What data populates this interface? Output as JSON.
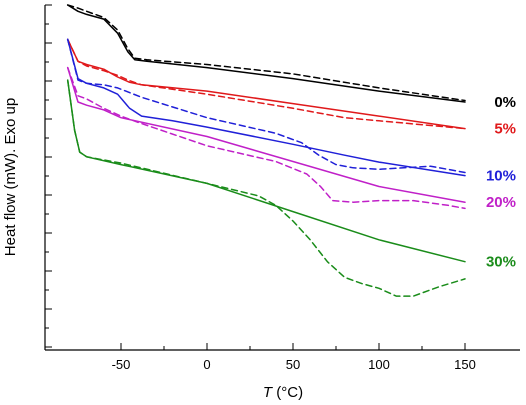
{
  "chart_data": {
    "type": "line",
    "xlabel_italic": "T",
    "xlabel_rest": " (°C)",
    "ylabel": "Heat flow (mW). Exo up",
    "xlim": [
      -86,
      160
    ],
    "ylim": [
      0,
      100
    ],
    "xticks": [
      -50,
      0,
      50,
      100,
      150
    ],
    "yticks_minor_count": 18,
    "series": [
      {
        "name": "0%",
        "color": "#000000",
        "solid": [
          [
            -81,
            100
          ],
          [
            -75,
            98
          ],
          [
            -70,
            97
          ],
          [
            -60,
            95.5
          ],
          [
            -52,
            91
          ],
          [
            -46,
            85
          ],
          [
            -42,
            82.5
          ],
          [
            -35,
            82
          ],
          [
            0,
            80
          ],
          [
            50,
            76.5
          ],
          [
            100,
            72.5
          ],
          [
            150,
            69
          ]
        ],
        "dashed": [
          [
            -81,
            100
          ],
          [
            -75,
            99
          ],
          [
            -70,
            98
          ],
          [
            -60,
            96
          ],
          [
            -52,
            92
          ],
          [
            -46,
            86
          ],
          [
            -42,
            83
          ],
          [
            -35,
            82.5
          ],
          [
            0,
            81
          ],
          [
            50,
            78
          ],
          [
            100,
            73.5
          ],
          [
            150,
            69.5
          ]
        ]
      },
      {
        "name": "5%",
        "color": "#e0191b",
        "solid": [
          [
            -81,
            89
          ],
          [
            -75,
            82
          ],
          [
            -70,
            81
          ],
          [
            -60,
            79.5
          ],
          [
            -52,
            77
          ],
          [
            -45,
            75.3
          ],
          [
            -38,
            74.5
          ],
          [
            0,
            72.5
          ],
          [
            50,
            68.5
          ],
          [
            100,
            64.5
          ],
          [
            150,
            60.5
          ]
        ],
        "dashed": [
          [
            -81,
            89
          ],
          [
            -75,
            82
          ],
          [
            -70,
            80.5
          ],
          [
            -60,
            79
          ],
          [
            -52,
            77.5
          ],
          [
            -45,
            75.8
          ],
          [
            -38,
            74.5
          ],
          [
            0,
            71.5
          ],
          [
            50,
            67
          ],
          [
            80,
            64
          ],
          [
            100,
            63
          ],
          [
            150,
            60.5
          ]
        ]
      },
      {
        "name": "10%",
        "color": "#2020d8",
        "solid": [
          [
            -81,
            89
          ],
          [
            -75,
            76.5
          ],
          [
            -70,
            75
          ],
          [
            -60,
            73.5
          ],
          [
            -52,
            71.5
          ],
          [
            -45,
            67
          ],
          [
            -38,
            64.5
          ],
          [
            -20,
            63
          ],
          [
            0,
            61
          ],
          [
            50,
            55.5
          ],
          [
            80,
            52
          ],
          [
            100,
            49.8
          ],
          [
            150,
            45.5
          ]
        ],
        "dashed": [
          [
            -81,
            89
          ],
          [
            -75,
            76
          ],
          [
            -70,
            75
          ],
          [
            -60,
            74.5
          ],
          [
            -52,
            73.5
          ],
          [
            -45,
            72
          ],
          [
            -38,
            70.5
          ],
          [
            0,
            64
          ],
          [
            40,
            59
          ],
          [
            55,
            56
          ],
          [
            65,
            52
          ],
          [
            75,
            49
          ],
          [
            85,
            48
          ],
          [
            100,
            47.5
          ],
          [
            130,
            48.5
          ],
          [
            150,
            46.5
          ]
        ]
      },
      {
        "name": "20%",
        "color": "#c020c8",
        "solid": [
          [
            -81,
            80
          ],
          [
            -75,
            69
          ],
          [
            -70,
            68
          ],
          [
            -60,
            66.5
          ],
          [
            -50,
            64
          ],
          [
            0,
            58
          ],
          [
            50,
            50
          ],
          [
            100,
            42
          ],
          [
            150,
            37
          ]
        ],
        "dashed": [
          [
            -81,
            80
          ],
          [
            -75,
            71
          ],
          [
            -70,
            70
          ],
          [
            -60,
            67
          ],
          [
            -50,
            64.5
          ],
          [
            -40,
            62.5
          ],
          [
            0,
            55
          ],
          [
            40,
            50
          ],
          [
            58,
            46
          ],
          [
            66,
            42
          ],
          [
            73,
            37.5
          ],
          [
            85,
            37
          ],
          [
            100,
            37.5
          ],
          [
            120,
            37.5
          ],
          [
            140,
            36
          ],
          [
            150,
            35
          ]
        ]
      },
      {
        "name": "30%",
        "color": "#1a8c1a",
        "solid": [
          [
            -81,
            76
          ],
          [
            -77,
            60
          ],
          [
            -74,
            53
          ],
          [
            -70,
            51.5
          ],
          [
            -50,
            49
          ],
          [
            0,
            43
          ],
          [
            50,
            34
          ],
          [
            100,
            25
          ],
          [
            150,
            18
          ]
        ],
        "dashed": [
          [
            -81,
            76
          ],
          [
            -77,
            60
          ],
          [
            -74,
            53
          ],
          [
            -70,
            51.5
          ],
          [
            -50,
            49.5
          ],
          [
            0,
            43
          ],
          [
            30,
            39
          ],
          [
            40,
            36
          ],
          [
            50,
            31
          ],
          [
            60,
            25
          ],
          [
            70,
            18
          ],
          [
            80,
            13
          ],
          [
            90,
            11
          ],
          [
            100,
            9.5
          ],
          [
            110,
            7
          ],
          [
            120,
            7
          ],
          [
            135,
            10
          ],
          [
            150,
            12.5
          ]
        ]
      }
    ]
  }
}
